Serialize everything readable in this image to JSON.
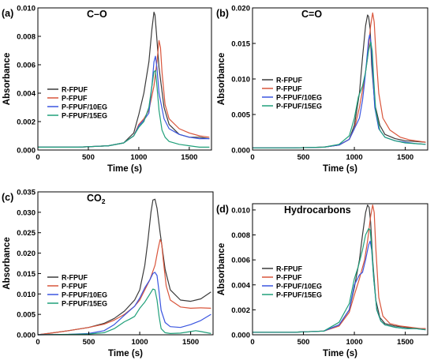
{
  "figure": {
    "panels": [
      {
        "label": "(a)",
        "title": "C–O"
      },
      {
        "label": "(b)",
        "title": "C=O"
      },
      {
        "label": "(c)",
        "title": "CO",
        "title_sub": "2"
      },
      {
        "label": "(d)",
        "title": "Hydrocarbons"
      }
    ]
  },
  "colors": {
    "R-FPUF": "#3a3a3a",
    "P-FPUF": "#d9553b",
    "P-FPUF/10EG": "#3a55e0",
    "P-FPUF/15EG": "#20a07a"
  },
  "chart_data": [
    {
      "type": "line",
      "title": "C–O",
      "panel_label": "(a)",
      "xlabel": "Time (s)",
      "ylabel": "Absorbance",
      "xlim": [
        0,
        1720
      ],
      "ylim": [
        0,
        0.01
      ],
      "xticks": [
        0,
        500,
        1000,
        1500
      ],
      "xtick_labels": [
        "0",
        "500",
        "1000",
        "1500"
      ],
      "yticks": [
        0,
        0.002,
        0.004,
        0.006,
        0.008,
        0.01
      ],
      "ytick_labels": [
        "0.000",
        "0.002",
        "0.004",
        "0.006",
        "0.008",
        "0.010"
      ],
      "legend": "center-left",
      "series": [
        {
          "name": "R-FPUF",
          "x": [
            0,
            400,
            700,
            850,
            950,
            1000,
            1050,
            1100,
            1130,
            1150,
            1160,
            1175,
            1200,
            1250,
            1300,
            1400,
            1500,
            1600,
            1700
          ],
          "y": [
            0.0002,
            0.0002,
            0.0003,
            0.0005,
            0.0012,
            0.0025,
            0.004,
            0.0062,
            0.0085,
            0.0097,
            0.0095,
            0.0082,
            0.0058,
            0.003,
            0.0018,
            0.0011,
            0.0009,
            0.0009,
            0.0008
          ]
        },
        {
          "name": "P-FPUF",
          "x": [
            0,
            400,
            700,
            850,
            950,
            1000,
            1050,
            1100,
            1150,
            1180,
            1200,
            1215,
            1230,
            1260,
            1300,
            1400,
            1500,
            1600,
            1700
          ],
          "y": [
            0.0002,
            0.0002,
            0.0003,
            0.0005,
            0.001,
            0.0018,
            0.0022,
            0.0028,
            0.0045,
            0.0062,
            0.0077,
            0.0072,
            0.0055,
            0.0032,
            0.0022,
            0.0015,
            0.0012,
            0.001,
            0.0009
          ]
        },
        {
          "name": "P-FPUF/10EG",
          "x": [
            0,
            400,
            700,
            850,
            950,
            1000,
            1050,
            1100,
            1130,
            1150,
            1165,
            1180,
            1200,
            1250,
            1300,
            1400,
            1500,
            1600,
            1700
          ],
          "y": [
            0.0002,
            0.0002,
            0.0003,
            0.0005,
            0.001,
            0.0017,
            0.0021,
            0.0026,
            0.0045,
            0.0062,
            0.0066,
            0.0058,
            0.004,
            0.0022,
            0.0015,
            0.0011,
            0.0009,
            0.0008,
            0.0008
          ]
        },
        {
          "name": "P-FPUF/15EG",
          "x": [
            0,
            400,
            700,
            850,
            950,
            1000,
            1050,
            1100,
            1130,
            1150,
            1165,
            1180,
            1200,
            1230,
            1260,
            1300,
            1400,
            1500,
            1600,
            1700
          ],
          "y": [
            0.0002,
            0.0002,
            0.0003,
            0.0005,
            0.001,
            0.0016,
            0.002,
            0.003,
            0.0045,
            0.0055,
            0.0056,
            0.0045,
            0.0028,
            0.0014,
            0.0009,
            0.0006,
            0.0004,
            0.0003,
            0.0002,
            0.0002
          ]
        }
      ]
    },
    {
      "type": "line",
      "title": "C=O",
      "panel_label": "(b)",
      "xlabel": "Time (s)",
      "ylabel": "Absorbance",
      "xlim": [
        0,
        1720
      ],
      "ylim": [
        0,
        0.02
      ],
      "xticks": [
        0,
        500,
        1000,
        1500
      ],
      "xtick_labels": [
        "0",
        "500",
        "1000",
        "1500"
      ],
      "yticks": [
        0,
        0.005,
        0.01,
        0.015,
        0.02
      ],
      "ytick_labels": [
        "0.000",
        "0.005",
        "0.010",
        "0.015",
        "0.020"
      ],
      "legend": "center-left",
      "series": [
        {
          "name": "R-FPUF",
          "x": [
            0,
            400,
            700,
            850,
            950,
            1000,
            1050,
            1080,
            1110,
            1130,
            1140,
            1155,
            1170,
            1200,
            1250,
            1300,
            1400,
            1500,
            1600,
            1700
          ],
          "y": [
            0.0003,
            0.0003,
            0.0004,
            0.0007,
            0.0015,
            0.0035,
            0.008,
            0.013,
            0.0175,
            0.019,
            0.0188,
            0.017,
            0.012,
            0.0065,
            0.0035,
            0.0022,
            0.0016,
            0.0013,
            0.0012,
            0.0011
          ]
        },
        {
          "name": "P-FPUF",
          "x": [
            0,
            400,
            700,
            850,
            950,
            1000,
            1050,
            1100,
            1130,
            1160,
            1180,
            1195,
            1210,
            1240,
            1280,
            1350,
            1450,
            1550,
            1650,
            1700
          ],
          "y": [
            0.0003,
            0.0003,
            0.0004,
            0.0007,
            0.0015,
            0.003,
            0.006,
            0.01,
            0.013,
            0.0175,
            0.0193,
            0.018,
            0.014,
            0.008,
            0.0045,
            0.0028,
            0.0018,
            0.0014,
            0.0012,
            0.0011
          ]
        },
        {
          "name": "P-FPUF/10EG",
          "x": [
            0,
            400,
            700,
            850,
            950,
            1000,
            1050,
            1080,
            1100,
            1120,
            1140,
            1150,
            1165,
            1180,
            1200,
            1240,
            1300,
            1400,
            1500,
            1600,
            1700
          ],
          "y": [
            0.0003,
            0.0003,
            0.0004,
            0.0007,
            0.0015,
            0.003,
            0.0045,
            0.007,
            0.0095,
            0.0125,
            0.0155,
            0.0162,
            0.015,
            0.011,
            0.006,
            0.003,
            0.0018,
            0.0013,
            0.0011,
            0.0009,
            0.0008
          ]
        },
        {
          "name": "P-FPUF/15EG",
          "x": [
            0,
            400,
            700,
            850,
            950,
            1000,
            1040,
            1080,
            1110,
            1140,
            1160,
            1175,
            1190,
            1210,
            1250,
            1300,
            1400,
            1500,
            1600,
            1700
          ],
          "y": [
            0.0003,
            0.0003,
            0.0004,
            0.0008,
            0.002,
            0.0045,
            0.0075,
            0.009,
            0.011,
            0.014,
            0.0152,
            0.014,
            0.01,
            0.0055,
            0.0028,
            0.0018,
            0.0013,
            0.001,
            0.0009,
            0.0008
          ]
        }
      ]
    },
    {
      "type": "line",
      "title": "CO2",
      "panel_label": "(c)",
      "xlabel": "Time (s)",
      "ylabel": "Absorbance",
      "xlim": [
        0,
        1720
      ],
      "ylim": [
        0,
        0.035
      ],
      "xticks": [
        0,
        500,
        1000,
        1500
      ],
      "xtick_labels": [
        "0",
        "500",
        "1000",
        "1500"
      ],
      "yticks": [
        0,
        0.005,
        0.01,
        0.015,
        0.02,
        0.025,
        0.03,
        0.035
      ],
      "ytick_labels": [
        "0.000",
        "0.005",
        "0.010",
        "0.015",
        "0.020",
        "0.025",
        "0.030",
        "0.035"
      ],
      "legend": "center-left",
      "series": [
        {
          "name": "R-FPUF",
          "x": [
            0,
            100,
            300,
            500,
            650,
            750,
            850,
            950,
            1000,
            1050,
            1080,
            1110,
            1130,
            1150,
            1170,
            1200,
            1250,
            1300,
            1400,
            1500,
            1600,
            1700
          ],
          "y": [
            0.0,
            0.0003,
            0.001,
            0.0018,
            0.0028,
            0.004,
            0.0058,
            0.0085,
            0.011,
            0.017,
            0.023,
            0.03,
            0.033,
            0.0332,
            0.031,
            0.025,
            0.016,
            0.011,
            0.0085,
            0.0082,
            0.0088,
            0.0105
          ]
        },
        {
          "name": "P-FPUF",
          "x": [
            0,
            100,
            300,
            500,
            650,
            750,
            850,
            950,
            1000,
            1050,
            1100,
            1150,
            1180,
            1200,
            1215,
            1230,
            1260,
            1300,
            1400,
            1500,
            1600,
            1700
          ],
          "y": [
            0.0,
            0.0003,
            0.001,
            0.0018,
            0.0026,
            0.0036,
            0.005,
            0.007,
            0.0085,
            0.011,
            0.0135,
            0.017,
            0.021,
            0.0233,
            0.0225,
            0.0185,
            0.012,
            0.0085,
            0.0068,
            0.0065,
            0.0066,
            0.0065
          ]
        },
        {
          "name": "P-FPUF/10EG",
          "x": [
            0,
            300,
            500,
            650,
            750,
            850,
            950,
            1000,
            1050,
            1100,
            1130,
            1150,
            1170,
            1190,
            1210,
            1250,
            1300,
            1400,
            1500,
            1600,
            1700
          ],
          "y": [
            0.0,
            0.0001,
            0.0003,
            0.001,
            0.0025,
            0.0048,
            0.007,
            0.009,
            0.0115,
            0.0135,
            0.015,
            0.0153,
            0.0145,
            0.0105,
            0.006,
            0.003,
            0.002,
            0.0018,
            0.0025,
            0.0035,
            0.005
          ]
        },
        {
          "name": "P-FPUF/15EG",
          "x": [
            0,
            300,
            500,
            650,
            750,
            850,
            900,
            950,
            1000,
            1050,
            1100,
            1130,
            1150,
            1170,
            1190,
            1210,
            1250,
            1300,
            1400,
            1500,
            1550,
            1600,
            1700
          ],
          "y": [
            0.0,
            0.0001,
            0.0002,
            0.0005,
            0.0015,
            0.0032,
            0.0038,
            0.0045,
            0.0065,
            0.008,
            0.01,
            0.0112,
            0.011,
            0.0085,
            0.0045,
            0.0015,
            0.0005,
            0.0003,
            0.0004,
            0.0008,
            0.001,
            0.0008,
            0.0003
          ]
        }
      ]
    },
    {
      "type": "line",
      "title": "Hydrocarbons",
      "panel_label": "(d)",
      "xlabel": "Time (s)",
      "ylabel": "Absorbance",
      "xlim": [
        0,
        1720
      ],
      "ylim": [
        0,
        0.0105
      ],
      "xticks": [
        0,
        500,
        1000,
        1500
      ],
      "xtick_labels": [
        "0",
        "500",
        "1000",
        "1500"
      ],
      "yticks": [
        0,
        0.002,
        0.004,
        0.006,
        0.008,
        0.01
      ],
      "ytick_labels": [
        "0.000",
        "0.002",
        "0.004",
        "0.006",
        "0.008",
        "0.010"
      ],
      "legend": "center-left",
      "series": [
        {
          "name": "R-FPUF",
          "x": [
            0,
            400,
            700,
            850,
            950,
            1000,
            1050,
            1080,
            1110,
            1130,
            1145,
            1160,
            1180,
            1210,
            1250,
            1300,
            1400,
            1500,
            1600,
            1700
          ],
          "y": [
            0.0002,
            0.0002,
            0.0003,
            0.0008,
            0.002,
            0.0038,
            0.006,
            0.008,
            0.0098,
            0.0104,
            0.0102,
            0.009,
            0.006,
            0.0028,
            0.0014,
            0.0009,
            0.0007,
            0.0006,
            0.0005,
            0.0005
          ]
        },
        {
          "name": "P-FPUF",
          "x": [
            0,
            400,
            700,
            850,
            950,
            1000,
            1050,
            1100,
            1130,
            1160,
            1180,
            1195,
            1210,
            1240,
            1280,
            1350,
            1450,
            1550,
            1650,
            1700
          ],
          "y": [
            0.0002,
            0.0002,
            0.0003,
            0.0007,
            0.0018,
            0.0032,
            0.0045,
            0.006,
            0.0075,
            0.0095,
            0.0104,
            0.0098,
            0.007,
            0.003,
            0.0015,
            0.0009,
            0.0007,
            0.0006,
            0.0005,
            0.0005
          ]
        },
        {
          "name": "P-FPUF/10EG",
          "x": [
            0,
            400,
            700,
            850,
            950,
            1000,
            1050,
            1080,
            1110,
            1140,
            1155,
            1170,
            1190,
            1220,
            1260,
            1300,
            1400,
            1500,
            1600,
            1700
          ],
          "y": [
            0.0002,
            0.0002,
            0.0003,
            0.0008,
            0.002,
            0.004,
            0.0048,
            0.005,
            0.006,
            0.0072,
            0.0075,
            0.0068,
            0.0045,
            0.002,
            0.0011,
            0.0008,
            0.0006,
            0.0005,
            0.0005,
            0.0004
          ]
        },
        {
          "name": "P-FPUF/15EG",
          "x": [
            0,
            400,
            700,
            850,
            950,
            1000,
            1040,
            1080,
            1110,
            1140,
            1155,
            1170,
            1190,
            1220,
            1260,
            1300,
            1400,
            1500,
            1600,
            1700
          ],
          "y": [
            0.0002,
            0.0002,
            0.0003,
            0.001,
            0.0025,
            0.0045,
            0.0055,
            0.0068,
            0.008,
            0.0085,
            0.0084,
            0.007,
            0.0045,
            0.002,
            0.0011,
            0.0008,
            0.0006,
            0.0005,
            0.0005,
            0.0004
          ]
        }
      ]
    }
  ]
}
